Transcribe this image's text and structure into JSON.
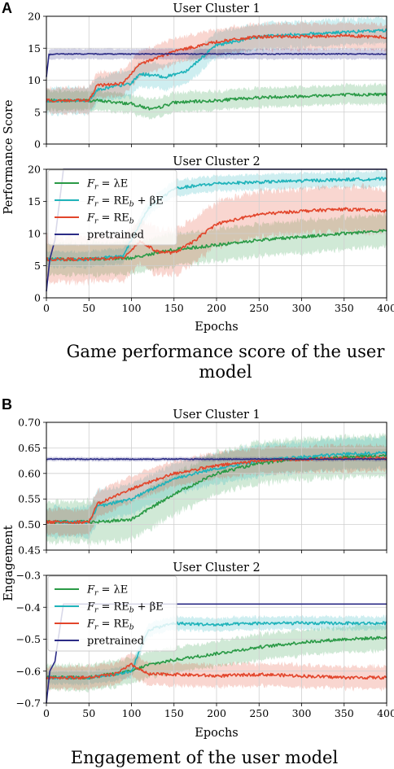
{
  "colors": {
    "green": "#2a9a46",
    "cyan": "#1fb3ba",
    "red": "#e2452b",
    "navy": "#2b2b86",
    "grid": "#cfcfcf"
  },
  "panels": [
    {
      "label": "A",
      "caption_lines": [
        "Game performance score of the user",
        "model"
      ],
      "ylabel": "Performance Score",
      "xlabel": "Epochs",
      "subplots": [
        {
          "title": "User Cluster 1",
          "ylim": [
            0,
            20
          ],
          "yticks": [
            "0",
            "5",
            "10",
            "15",
            "20"
          ],
          "legend": false
        },
        {
          "title": "User Cluster 2",
          "ylim": [
            0,
            20
          ],
          "yticks": [
            "0",
            "5",
            "10",
            "15",
            "20"
          ],
          "xticks": [
            "0",
            "50",
            "100",
            "150",
            "200",
            "250",
            "300",
            "350",
            "400"
          ],
          "legend": true
        }
      ]
    },
    {
      "label": "B",
      "caption_lines": [
        "Engagement of the user model"
      ],
      "ylabel": "Engagement",
      "xlabel": "Epochs",
      "subplots": [
        {
          "title": "User Cluster 1",
          "ylim": [
            0.45,
            0.7
          ],
          "yticks": [
            "0.45",
            "0.50",
            "0.55",
            "0.60",
            "0.65",
            "0.70"
          ],
          "legend": false
        },
        {
          "title": "User Cluster 2",
          "ylim": [
            -0.7,
            -0.3
          ],
          "yticks": [
            "−0.7",
            "−0.6",
            "−0.5",
            "−0.4",
            "−0.3"
          ],
          "xticks": [
            "0",
            "50",
            "100",
            "150",
            "200",
            "250",
            "300",
            "350",
            "400"
          ],
          "legend": true
        }
      ]
    }
  ],
  "legend": [
    {
      "label_math": "F",
      "sub": "r",
      "rest": " = λE",
      "color": "green"
    },
    {
      "label_math": "F",
      "sub": "r",
      "rest": " = RE",
      "sub2": "b",
      "rest2": " + βE",
      "color": "cyan"
    },
    {
      "label_math": "F",
      "sub": "r",
      "rest": " = RE",
      "sub2": "b",
      "color": "red"
    },
    {
      "label_plain": "pretrained",
      "color": "navy"
    }
  ],
  "chart_data": [
    {
      "type": "line",
      "title": "User Cluster 1",
      "xlabel": "",
      "ylabel": "Performance Score",
      "xlim": [
        0,
        400
      ],
      "ylim": [
        0,
        20
      ],
      "series": [
        {
          "name": "F_r = λE",
          "color": "green",
          "x": [
            0,
            50,
            60,
            100,
            125,
            150,
            200,
            250,
            300,
            350,
            400
          ],
          "y": [
            6.8,
            6.8,
            6.8,
            6.3,
            5.4,
            6.5,
            6.8,
            7.3,
            7.5,
            7.7,
            7.8
          ],
          "band": 1.5
        },
        {
          "name": "F_r = RE_b + βE",
          "color": "cyan",
          "x": [
            0,
            50,
            60,
            100,
            110,
            140,
            165,
            200,
            250,
            300,
            350,
            400
          ],
          "y": [
            6.8,
            6.8,
            8.5,
            9.5,
            11,
            10.5,
            11.5,
            15.5,
            16.8,
            17.2,
            17.5,
            17.8
          ],
          "band": 2.0
        },
        {
          "name": "F_r = RE_b",
          "color": "red",
          "x": [
            0,
            50,
            60,
            90,
            110,
            150,
            200,
            250,
            300,
            350,
            400
          ],
          "y": [
            6.8,
            6.8,
            9.2,
            9.5,
            12.5,
            14.5,
            16,
            16.8,
            16.8,
            17,
            16.7
          ],
          "band": 2.0
        },
        {
          "name": "pretrained",
          "color": "navy",
          "x": [
            0,
            3,
            10,
            400
          ],
          "y": [
            10.5,
            14,
            14.1,
            14.1
          ],
          "band": 0.8
        }
      ]
    },
    {
      "type": "line",
      "title": "User Cluster 2",
      "xlabel": "Epochs",
      "ylabel": "Performance Score",
      "xlim": [
        0,
        400
      ],
      "ylim": [
        0,
        20
      ],
      "series": [
        {
          "name": "F_r = λE",
          "color": "green",
          "x": [
            0,
            50,
            100,
            130,
            150,
            200,
            250,
            300,
            350,
            400
          ],
          "y": [
            6,
            6,
            6.2,
            7,
            7.5,
            8.2,
            9,
            9.5,
            10,
            10.5
          ],
          "band": 2.5
        },
        {
          "name": "F_r = RE_b + βE",
          "color": "cyan",
          "x": [
            0,
            50,
            90,
            100,
            120,
            150,
            200,
            250,
            300,
            350,
            400
          ],
          "y": [
            6,
            6,
            6.5,
            9,
            14,
            17,
            17.8,
            18,
            18.2,
            18.4,
            18.5
          ],
          "band": 1.2
        },
        {
          "name": "F_r = RE_b",
          "color": "red",
          "x": [
            0,
            50,
            90,
            110,
            130,
            150,
            170,
            200,
            250,
            300,
            350,
            400
          ],
          "y": [
            6,
            6,
            6.2,
            8.8,
            7.2,
            7,
            8.5,
            11.5,
            13,
            13.5,
            13.8,
            13.5
          ],
          "band": 3.5
        },
        {
          "name": "pretrained",
          "color": "navy",
          "x": [
            0,
            4,
            10,
            20,
            400
          ],
          "y": [
            1,
            6,
            9,
            20,
            20
          ],
          "band": 0
        }
      ]
    },
    {
      "type": "line",
      "title": "User Cluster 1",
      "xlabel": "",
      "ylabel": "Engagement",
      "xlim": [
        0,
        400
      ],
      "ylim": [
        0.45,
        0.7
      ],
      "series": [
        {
          "name": "F_r = λE",
          "color": "green",
          "x": [
            0,
            50,
            60,
            100,
            150,
            200,
            250,
            300,
            350,
            400
          ],
          "y": [
            0.505,
            0.505,
            0.505,
            0.51,
            0.56,
            0.6,
            0.62,
            0.628,
            0.632,
            0.635
          ],
          "band": 0.04
        },
        {
          "name": "F_r = RE_b + βE",
          "color": "cyan",
          "x": [
            0,
            50,
            60,
            100,
            150,
            200,
            250,
            300,
            350,
            400
          ],
          "y": [
            0.505,
            0.505,
            0.535,
            0.55,
            0.59,
            0.61,
            0.625,
            0.632,
            0.638,
            0.64
          ],
          "band": 0.03
        },
        {
          "name": "F_r = RE_b",
          "color": "red",
          "x": [
            0,
            50,
            60,
            100,
            150,
            200,
            250,
            300,
            350,
            400
          ],
          "y": [
            0.505,
            0.505,
            0.54,
            0.57,
            0.6,
            0.615,
            0.625,
            0.628,
            0.63,
            0.63
          ],
          "band": 0.025
        },
        {
          "name": "pretrained",
          "color": "navy",
          "x": [
            0,
            400
          ],
          "y": [
            0.628,
            0.628
          ],
          "band": 0.004
        }
      ]
    },
    {
      "type": "line",
      "title": "User Cluster 2",
      "xlabel": "Epochs",
      "ylabel": "Engagement",
      "xlim": [
        0,
        400
      ],
      "ylim": [
        -0.7,
        -0.3
      ],
      "series": [
        {
          "name": "F_r = λE",
          "color": "green",
          "x": [
            0,
            50,
            100,
            120,
            150,
            200,
            250,
            300,
            350,
            400
          ],
          "y": [
            -0.62,
            -0.62,
            -0.6,
            -0.58,
            -0.565,
            -0.545,
            -0.525,
            -0.51,
            -0.5,
            -0.495
          ],
          "band": 0.04
        },
        {
          "name": "F_r = RE_b + βE",
          "color": "cyan",
          "x": [
            0,
            50,
            80,
            100,
            120,
            150,
            200,
            250,
            300,
            350,
            400
          ],
          "y": [
            -0.62,
            -0.62,
            -0.61,
            -0.6,
            -0.47,
            -0.45,
            -0.455,
            -0.45,
            -0.45,
            -0.45,
            -0.45
          ],
          "band": 0.02
        },
        {
          "name": "F_r = RE_b",
          "color": "red",
          "x": [
            0,
            50,
            80,
            100,
            120,
            150,
            200,
            250,
            300,
            350,
            400
          ],
          "y": [
            -0.62,
            -0.62,
            -0.61,
            -0.58,
            -0.61,
            -0.61,
            -0.615,
            -0.61,
            -0.615,
            -0.62,
            -0.62
          ],
          "band": 0.035
        },
        {
          "name": "pretrained",
          "color": "navy",
          "x": [
            0,
            4,
            10,
            20,
            400
          ],
          "y": [
            -0.7,
            -0.6,
            -0.57,
            -0.39,
            -0.39
          ],
          "band": 0
        }
      ]
    }
  ]
}
